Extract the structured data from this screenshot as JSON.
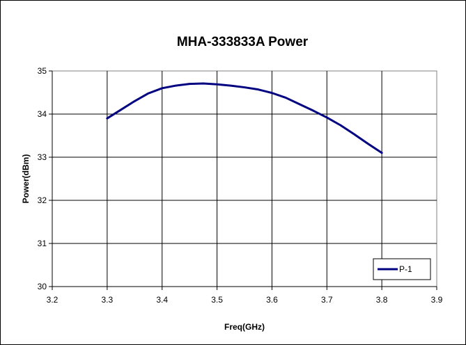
{
  "chart_data": {
    "type": "line",
    "title": "MHA-333833A Power",
    "xlabel": "Freq(GHz)",
    "ylabel": "Power(dBm)",
    "xlim": [
      3.2,
      3.9
    ],
    "ylim": [
      30,
      35
    ],
    "x_ticks": [
      "3.2",
      "3.3",
      "3.4",
      "3.5",
      "3.6",
      "3.7",
      "3.8",
      "3.9"
    ],
    "y_ticks": [
      "30",
      "31",
      "32",
      "33",
      "34",
      "35"
    ],
    "grid": true,
    "legend_position": "bottom-right",
    "series": [
      {
        "name": "P-1",
        "color": "#000080",
        "x": [
          3.3,
          3.325,
          3.35,
          3.375,
          3.4,
          3.425,
          3.45,
          3.475,
          3.5,
          3.525,
          3.55,
          3.575,
          3.6,
          3.625,
          3.65,
          3.675,
          3.7,
          3.725,
          3.75,
          3.775,
          3.8
        ],
        "y": [
          33.9,
          34.1,
          34.3,
          34.48,
          34.6,
          34.66,
          34.7,
          34.71,
          34.69,
          34.66,
          34.62,
          34.57,
          34.49,
          34.38,
          34.23,
          34.08,
          33.92,
          33.74,
          33.53,
          33.31,
          33.1
        ]
      }
    ]
  }
}
